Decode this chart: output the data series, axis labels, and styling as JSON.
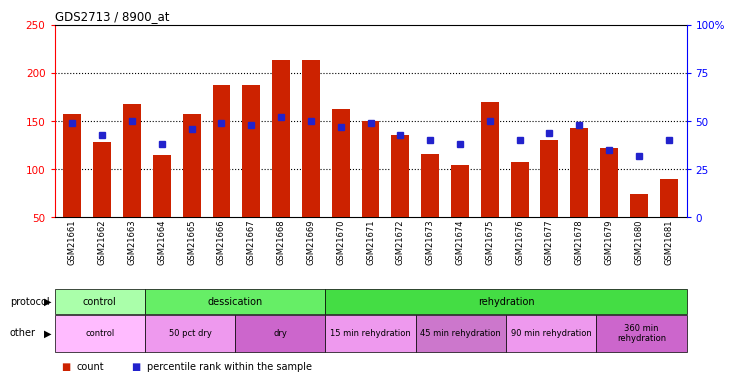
{
  "title": "GDS2713 / 8900_at",
  "samples": [
    "GSM21661",
    "GSM21662",
    "GSM21663",
    "GSM21664",
    "GSM21665",
    "GSM21666",
    "GSM21667",
    "GSM21668",
    "GSM21669",
    "GSM21670",
    "GSM21671",
    "GSM21672",
    "GSM21673",
    "GSM21674",
    "GSM21675",
    "GSM21676",
    "GSM21677",
    "GSM21678",
    "GSM21679",
    "GSM21680",
    "GSM21681"
  ],
  "bar_values": [
    157,
    128,
    168,
    115,
    157,
    187,
    187,
    213,
    213,
    162,
    150,
    135,
    116,
    104,
    170,
    107,
    130,
    143,
    122,
    74,
    90
  ],
  "percentile_values": [
    49,
    43,
    50,
    38,
    46,
    49,
    48,
    52,
    50,
    47,
    49,
    43,
    40,
    38,
    50,
    40,
    44,
    48,
    35,
    32,
    40
  ],
  "ylim_left": [
    50,
    250
  ],
  "ylim_right": [
    0,
    100
  ],
  "yticks_left": [
    50,
    100,
    150,
    200,
    250
  ],
  "yticks_right": [
    0,
    25,
    50,
    75,
    100
  ],
  "bar_color": "#cc2200",
  "dot_color": "#2222cc",
  "bg_color": "#ffffff",
  "protocol_groups": [
    {
      "label": "control",
      "start": 0,
      "end": 3,
      "color": "#aaffaa"
    },
    {
      "label": "dessication",
      "start": 3,
      "end": 9,
      "color": "#66ee66"
    },
    {
      "label": "rehydration",
      "start": 9,
      "end": 21,
      "color": "#44dd44"
    }
  ],
  "other_groups": [
    {
      "label": "control",
      "start": 0,
      "end": 3,
      "color": "#ffbbff"
    },
    {
      "label": "50 pct dry",
      "start": 3,
      "end": 6,
      "color": "#ee99ee"
    },
    {
      "label": "dry",
      "start": 6,
      "end": 9,
      "color": "#cc66cc"
    },
    {
      "label": "15 min rehydration",
      "start": 9,
      "end": 12,
      "color": "#ee99ee"
    },
    {
      "label": "45 min rehydration",
      "start": 12,
      "end": 15,
      "color": "#cc77cc"
    },
    {
      "label": "90 min rehydration",
      "start": 15,
      "end": 18,
      "color": "#ee99ee"
    },
    {
      "label": "360 min\nrehydration",
      "start": 18,
      "end": 21,
      "color": "#cc66cc"
    }
  ]
}
